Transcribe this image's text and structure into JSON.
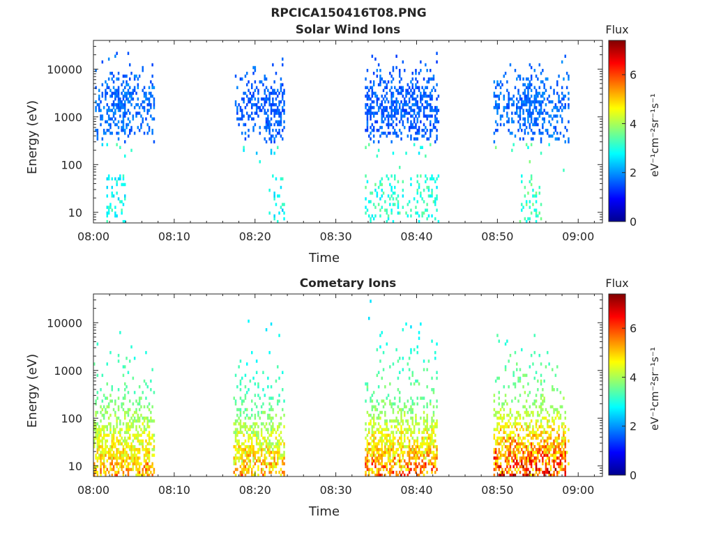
{
  "figure_title": "RPCICA150416T08.PNG",
  "colormap": [
    "#00008f",
    "#0000ff",
    "#0080ff",
    "#00ffff",
    "#80ff80",
    "#ffff00",
    "#ff8000",
    "#ff0000",
    "#800000"
  ],
  "chart_data": [
    {
      "type": "heatmap",
      "title": "Solar Wind Ions",
      "xlabel": "Time",
      "ylabel": "Energy (eV)",
      "x_unit": "minutes after 08:00",
      "xlim": [
        0,
        63
      ],
      "x_ticks": [
        0,
        10,
        20,
        30,
        40,
        50,
        60
      ],
      "x_tick_labels": [
        "08:00",
        "08:10",
        "08:20",
        "08:30",
        "08:40",
        "08:50",
        "09:00"
      ],
      "yscale": "log",
      "ylim": [
        6,
        40000
      ],
      "y_ticks": [
        10,
        100,
        1000,
        10000
      ],
      "y_tick_labels": [
        "10",
        "100",
        "1000",
        "10000"
      ],
      "colorbar": {
        "label": "Flux",
        "unit_label": "eV⁻¹cm⁻²sr⁻¹s⁻¹",
        "range": [
          0,
          7.4
        ],
        "ticks": [
          0,
          2,
          4,
          6
        ],
        "tick_labels": [
          "0",
          "2",
          "4",
          "6"
        ]
      },
      "bursts": [
        {
          "start": 0.2,
          "end": 7.6,
          "e_peak": 1800,
          "e_max": 22000,
          "core_start": 1.5,
          "core_end": 4.5,
          "low_e_start": 1.5,
          "low_e_end": 4.0,
          "flux_core": 1.7,
          "flux_low": 2.7
        },
        {
          "start": 17.5,
          "end": 23.6,
          "e_peak": 1500,
          "e_max": 30000,
          "core_start": 21.0,
          "core_end": 23.6,
          "low_e_start": 21.5,
          "low_e_end": 23.5,
          "flux_core": 1.6,
          "flux_low": 2.6
        },
        {
          "start": 33.6,
          "end": 42.8,
          "e_peak": 1500,
          "e_max": 36000,
          "core_start": 33.8,
          "core_end": 42.6,
          "low_e_start": 33.6,
          "low_e_end": 42.8,
          "flux_core": 1.6,
          "flux_low": 2.9
        },
        {
          "start": 49.5,
          "end": 58.8,
          "e_peak": 1500,
          "e_max": 22000,
          "core_start": 52.5,
          "core_end": 55.5,
          "low_e_start": 52.5,
          "low_e_end": 55.5,
          "flux_core": 1.7,
          "flux_low": 3.1
        }
      ]
    },
    {
      "type": "heatmap",
      "title": "Cometary Ions",
      "xlabel": "Time",
      "ylabel": "Energy (eV)",
      "x_unit": "minutes after 08:00",
      "xlim": [
        0,
        63
      ],
      "x_ticks": [
        0,
        10,
        20,
        30,
        40,
        50,
        60
      ],
      "x_tick_labels": [
        "08:00",
        "08:10",
        "08:20",
        "08:30",
        "08:40",
        "08:50",
        "09:00"
      ],
      "yscale": "log",
      "ylim": [
        6,
        40000
      ],
      "y_ticks": [
        10,
        100,
        1000,
        10000
      ],
      "y_tick_labels": [
        "10",
        "100",
        "1000",
        "10000"
      ],
      "colorbar": {
        "label": "Flux",
        "unit_label": "eV⁻¹cm⁻²sr⁻¹s⁻¹",
        "range": [
          0,
          7.4
        ],
        "ticks": [
          0,
          2,
          4,
          6
        ],
        "tick_labels": [
          "0",
          "2",
          "4",
          "6"
        ]
      },
      "bursts": [
        {
          "start": 0.0,
          "end": 7.6,
          "e_peak": 20,
          "e_max": 7000,
          "core_start": 0.0,
          "core_end": 7.0,
          "low_e_start": 0.0,
          "low_e_end": 7.0,
          "flux_core": 4.6,
          "flux_low": 3.8
        },
        {
          "start": 17.3,
          "end": 23.6,
          "e_peak": 20,
          "e_max": 12000,
          "core_start": 17.5,
          "core_end": 23.0,
          "low_e_start": 17.5,
          "low_e_end": 23.0,
          "flux_core": 4.6,
          "flux_low": 3.6
        },
        {
          "start": 33.6,
          "end": 42.6,
          "e_peak": 20,
          "e_max": 30000,
          "core_start": 33.6,
          "core_end": 42.5,
          "low_e_start": 33.6,
          "low_e_end": 42.5,
          "flux_core": 5.2,
          "flux_low": 3.8
        },
        {
          "start": 49.5,
          "end": 58.8,
          "e_peak": 20,
          "e_max": 6000,
          "core_start": 49.5,
          "core_end": 58.5,
          "low_e_start": 49.5,
          "low_e_end": 58.5,
          "flux_core": 6.0,
          "flux_low": 4.0
        }
      ]
    }
  ]
}
